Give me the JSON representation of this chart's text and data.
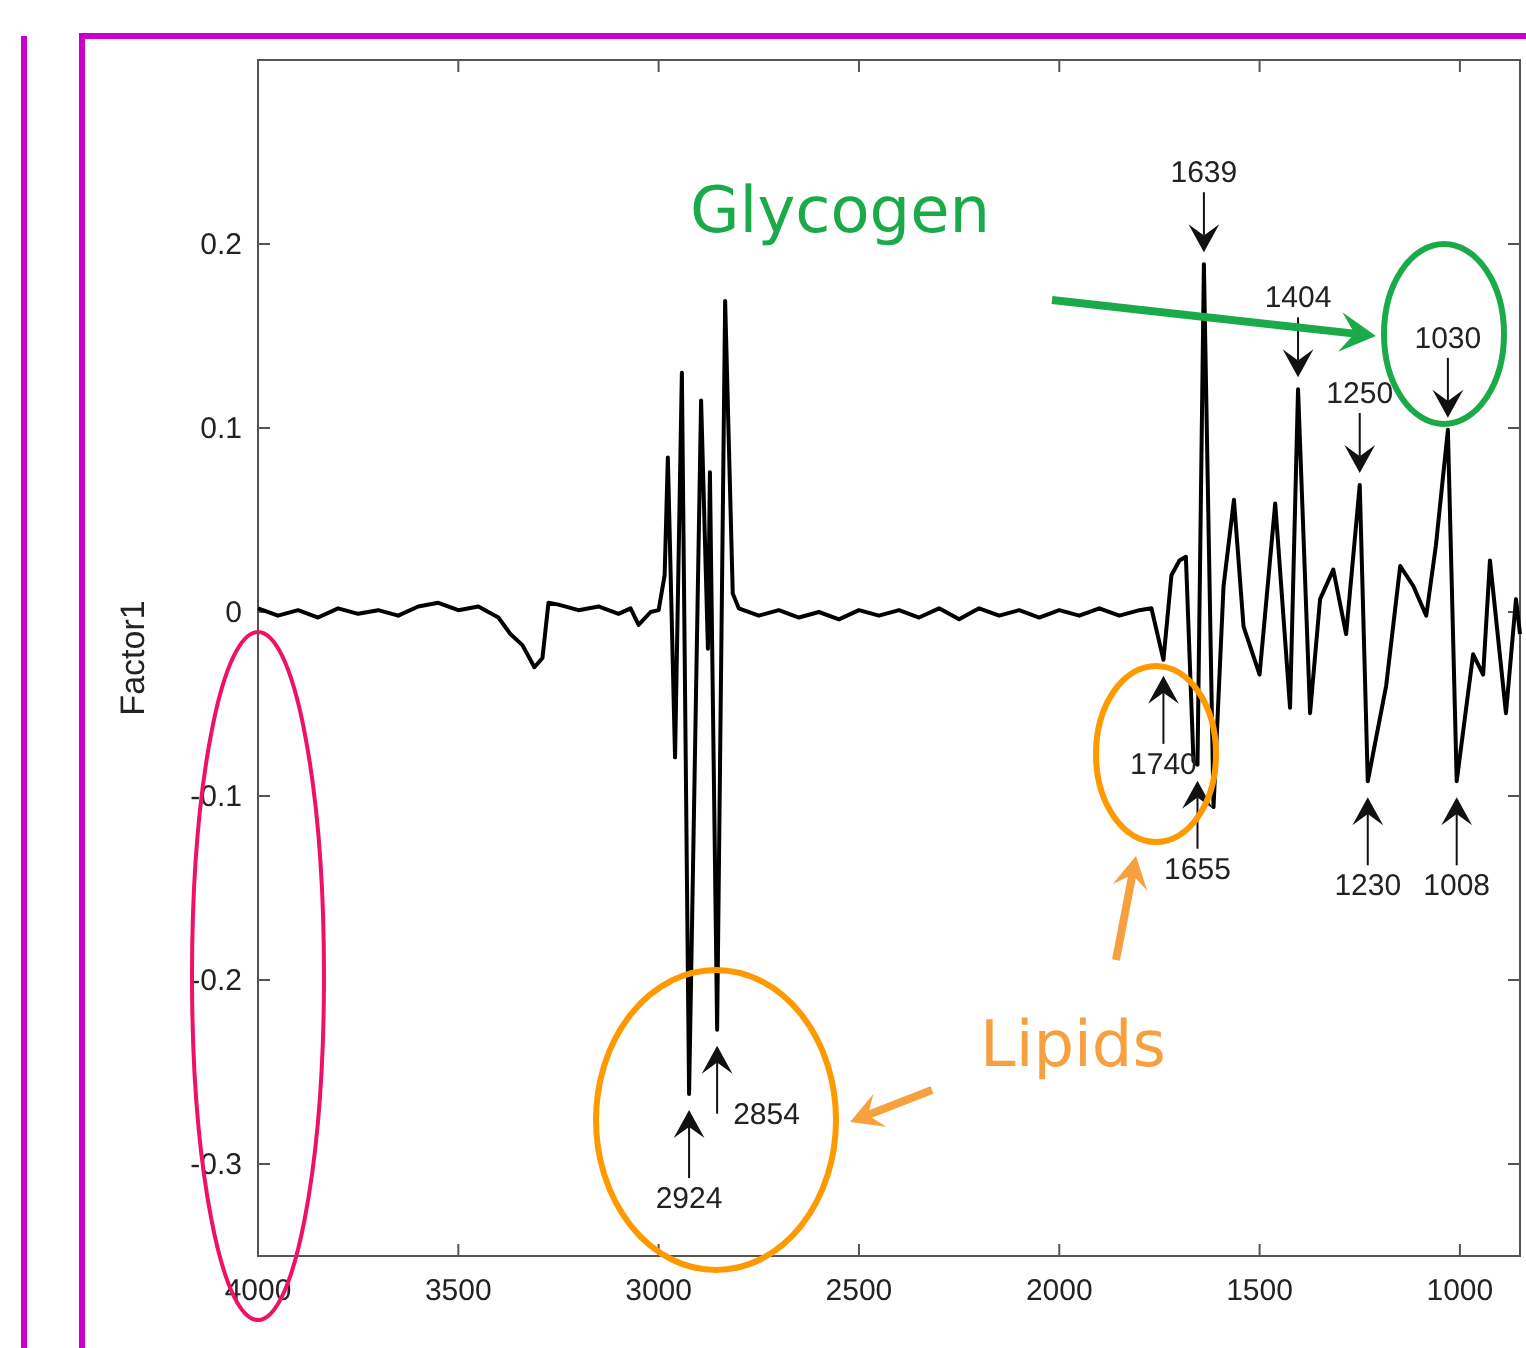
{
  "chart_data": {
    "type": "line",
    "ylabel": "Factor1",
    "xlim": [
      4000,
      850
    ],
    "ylim": [
      -0.35,
      0.3
    ],
    "xticks": [
      4000,
      3500,
      3000,
      2500,
      2000,
      1500,
      1000
    ],
    "yticks": [
      -0.3,
      -0.2,
      -0.1,
      0,
      0.1,
      0.2
    ],
    "grid": false,
    "marker": "none",
    "line_style": "solid",
    "series": [
      {
        "color": "#000000",
        "x": [
          4000,
          3950,
          3900,
          3850,
          3800,
          3750,
          3700,
          3650,
          3600,
          3550,
          3500,
          3450,
          3400,
          3370,
          3340,
          3310,
          3290,
          3275,
          3250,
          3200,
          3150,
          3100,
          3070,
          3050,
          3020,
          3000,
          2985,
          2977,
          2959,
          2942,
          2924,
          2894,
          2877,
          2872,
          2854,
          2834,
          2815,
          2800,
          2750,
          2700,
          2650,
          2600,
          2550,
          2500,
          2450,
          2400,
          2350,
          2300,
          2250,
          2200,
          2150,
          2100,
          2050,
          2000,
          1950,
          1900,
          1850,
          1800,
          1770,
          1740,
          1720,
          1700,
          1684,
          1665,
          1655,
          1639,
          1615,
          1590,
          1564,
          1540,
          1500,
          1461,
          1424,
          1404,
          1374,
          1349,
          1316,
          1284,
          1250,
          1230,
          1184,
          1149,
          1116,
          1084,
          1060,
          1030,
          1008,
          967,
          942,
          925,
          885,
          860,
          850
        ],
        "values": [
          0.002,
          -0.002,
          0.001,
          -0.003,
          0.002,
          -0.001,
          0.001,
          -0.002,
          0.003,
          0.005,
          0.001,
          0.003,
          -0.003,
          -0.012,
          -0.018,
          -0.03,
          -0.025,
          0.005,
          0.004,
          0.001,
          0.003,
          -0.001,
          0.002,
          -0.007,
          0.0,
          0.001,
          0.02,
          0.084,
          -0.079,
          0.13,
          -0.262,
          0.115,
          -0.02,
          0.076,
          -0.227,
          0.169,
          0.01,
          0.002,
          -0.002,
          0.001,
          -0.003,
          0.0,
          -0.004,
          0.001,
          -0.002,
          0.001,
          -0.003,
          0.002,
          -0.004,
          0.002,
          -0.002,
          0.001,
          -0.003,
          0.001,
          -0.002,
          0.002,
          -0.002,
          0.001,
          0.002,
          -0.026,
          0.02,
          0.028,
          0.03,
          -0.081,
          -0.083,
          0.189,
          -0.106,
          0.014,
          0.061,
          -0.008,
          -0.034,
          0.059,
          -0.052,
          0.121,
          -0.055,
          0.007,
          0.023,
          -0.012,
          0.069,
          -0.092,
          -0.04,
          0.025,
          0.014,
          -0.002,
          0.036,
          0.099,
          -0.092,
          -0.023,
          -0.034,
          0.028,
          -0.055,
          0.007,
          -0.012
        ]
      }
    ],
    "annotations": [
      {
        "text": "1639",
        "x": 1639,
        "y": 0.189
      },
      {
        "text": "1404",
        "x": 1404,
        "y": 0.121
      },
      {
        "text": "1250",
        "x": 1250,
        "y": 0.069
      },
      {
        "text": "1030",
        "x": 1030,
        "y": 0.099
      },
      {
        "text": "1740",
        "x": 1740,
        "y": -0.026
      },
      {
        "text": "1655",
        "x": 1655,
        "y": -0.083
      },
      {
        "text": "1230",
        "x": 1230,
        "y": -0.092
      },
      {
        "text": "1008",
        "x": 1008,
        "y": -0.092
      },
      {
        "text": "2924",
        "x": 2924,
        "y": -0.262
      },
      {
        "text": "2854",
        "x": 2854,
        "y": -0.227
      },
      "Glycogen",
      "Lipids"
    ]
  }
}
